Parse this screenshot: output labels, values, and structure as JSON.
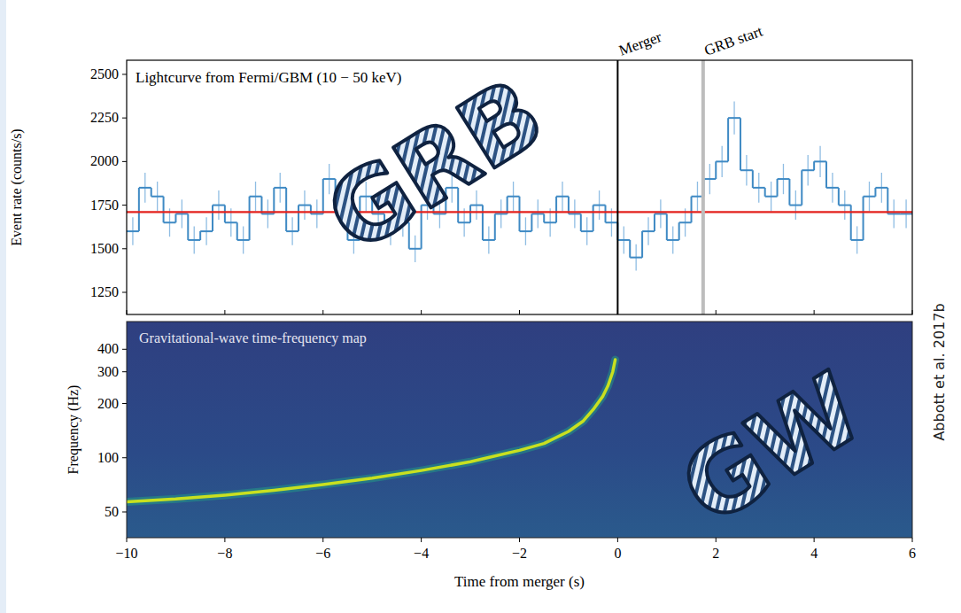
{
  "chart_data": [
    {
      "type": "step",
      "title": "Lightcurve from Fermi/GBM (10 − 50 keV)",
      "y_label": "Event rate (counts/s)",
      "bins": [
        -10,
        -9.75,
        -9.5,
        -9.25,
        -9,
        -8.75,
        -8.5,
        -8.25,
        -8,
        -7.75,
        -7.5,
        -7.25,
        -7,
        -6.75,
        -6.5,
        -6.25,
        -6,
        -5.75,
        -5.5,
        -5.25,
        -5,
        -4.75,
        -4.5,
        -4.25,
        -4,
        -3.75,
        -3.5,
        -3.25,
        -3,
        -2.75,
        -2.5,
        -2.25,
        -2,
        -1.75,
        -1.5,
        -1.25,
        -1,
        -0.75,
        -0.5,
        -0.25,
        0,
        0.25,
        0.5,
        0.75,
        1,
        1.25,
        1.5,
        1.75,
        2,
        2.25,
        2.5,
        2.75,
        3,
        3.25,
        3.5,
        3.75,
        4,
        4.25,
        4.5,
        4.75,
        5,
        5.25,
        5.5,
        5.75,
        6
      ],
      "values": [
        1600,
        1850,
        1800,
        1650,
        1700,
        1550,
        1600,
        1750,
        1650,
        1550,
        1800,
        1700,
        1850,
        1600,
        1750,
        1700,
        1900,
        1750,
        1550,
        1800,
        1700,
        1600,
        1650,
        1500,
        1750,
        1700,
        1850,
        1650,
        1750,
        1550,
        1700,
        1800,
        1600,
        1700,
        1650,
        1800,
        1700,
        1600,
        1750,
        1650,
        1550,
        1450,
        1600,
        1700,
        1550,
        1650,
        1800,
        1900,
        2000,
        2250,
        1950,
        1850,
        1800,
        1900,
        1750,
        1950,
        2000,
        1850,
        1750,
        1550,
        1800,
        1850,
        1700,
        1700
      ],
      "errors": [
        80,
        86,
        85,
        81,
        82,
        79,
        80,
        84,
        81,
        79,
        85,
        82,
        86,
        80,
        84,
        82,
        87,
        84,
        79,
        85,
        82,
        80,
        81,
        77,
        84,
        82,
        86,
        81,
        84,
        79,
        82,
        85,
        80,
        82,
        81,
        85,
        82,
        80,
        84,
        81,
        79,
        76,
        80,
        82,
        79,
        81,
        85,
        87,
        89,
        95,
        88,
        86,
        85,
        87,
        84,
        88,
        89,
        86,
        84,
        79,
        85,
        86,
        82,
        82
      ],
      "color": "#3f8ac4",
      "xlim": [
        -10,
        6
      ],
      "xticks": [
        -10,
        -8,
        -6,
        -4,
        -2,
        0,
        2,
        4,
        6
      ],
      "ylim": [
        1123,
        2581
      ],
      "yticks": [
        1250,
        1500,
        1750,
        2000,
        2250,
        2500
      ],
      "tick_labels": "y",
      "hlines": [
        {
          "value": 1710,
          "color": "#e3211c"
        }
      ],
      "vlines": [
        {
          "value": 0,
          "label": "Merger",
          "color": "#000000"
        },
        {
          "value": 1.74,
          "label": "GRB start",
          "color": "#bdbdbd"
        }
      ]
    },
    {
      "type": "spectrogram",
      "title": "Gravitational-wave time-frequency map",
      "x_label": "Time from merger (s)",
      "y_label": "Frequency (Hz)",
      "x": [
        -10,
        -9,
        -8,
        -7,
        -6,
        -5,
        -4,
        -3,
        -2,
        -1.5,
        -1,
        -0.7,
        -0.5,
        -0.3,
        -0.2,
        -0.1,
        -0.05
      ],
      "values": [
        57,
        59,
        62,
        66,
        71,
        77,
        85,
        95,
        110,
        120,
        140,
        160,
        185,
        220,
        250,
        300,
        350
      ],
      "color": "#c8e020",
      "log": "y",
      "xlim": [
        -10,
        6
      ],
      "xticks": [
        -10,
        -8,
        -6,
        -4,
        -2,
        0,
        2,
        4,
        6
      ],
      "ylim": [
        36,
        570
      ],
      "yticks": [
        50,
        100,
        200,
        300,
        400
      ]
    }
  ],
  "overlay_labels": [
    "GRB",
    "GW"
  ],
  "credit": "Abbott et al. 2017b"
}
